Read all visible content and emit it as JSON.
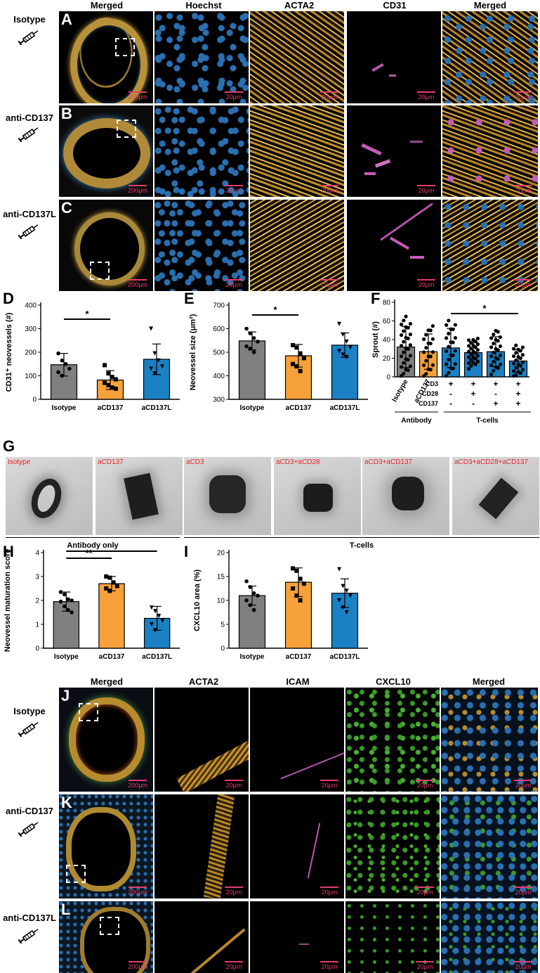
{
  "top_section": {
    "column_headers": [
      "Merged",
      "Hoechst",
      "ACTA2",
      "CD31",
      "Merged"
    ],
    "rows": [
      {
        "letter": "A",
        "label": "Isotype"
      },
      {
        "letter": "B",
        "label": "anti-CD137"
      },
      {
        "letter": "C",
        "label": "anti-CD137L"
      }
    ],
    "scale_overview": "200μm",
    "scale_zoom": "20μm"
  },
  "panel_D": {
    "letter": "D"
  },
  "panel_E": {
    "letter": "E"
  },
  "panel_F": {
    "letter": "F"
  },
  "panel_G": {
    "letter": "G",
    "images": [
      "Isotype",
      "aCD137",
      "aCD3",
      "aCD3+aCD28",
      "aCD3+aCD137",
      "aCD3+aCD28+aCD137"
    ],
    "group_labels": [
      "Antibody only",
      "T-cells"
    ]
  },
  "panel_H": {
    "letter": "H"
  },
  "panel_I": {
    "letter": "I"
  },
  "bottom_section": {
    "column_headers": [
      "Merged",
      "ACTA2",
      "ICAM",
      "CXCL10",
      "Merged"
    ],
    "rows": [
      {
        "letter": "J",
        "label": "Isotype"
      },
      {
        "letter": "K",
        "label": "anti-CD137"
      },
      {
        "letter": "L",
        "label": "anti-CD137L"
      }
    ],
    "scale_overview": "200μm",
    "scale_zoom": "20μm"
  },
  "chart_data": [
    {
      "id": "D",
      "type": "bar",
      "categories": [
        "Isotype",
        "aCD137",
        "aCD137L"
      ],
      "values": [
        147,
        82,
        170
      ],
      "errors": [
        48,
        40,
        65
      ],
      "colors": [
        "#808080",
        "#f7a13a",
        "#1b80c4"
      ],
      "ylabel": "CD31⁺ neovessels (#)",
      "ylim": [
        0,
        400
      ],
      "yticks": [
        0,
        100,
        200,
        300,
        400
      ],
      "points": [
        [
          195,
          165,
          150,
          130,
          115,
          100
        ],
        [
          145,
          110,
          95,
          85,
          70,
          60,
          50,
          45
        ],
        [
          300,
          195,
          165,
          140,
          130,
          110
        ]
      ],
      "significance": [
        {
          "from": 0,
          "to": 1,
          "label": "*"
        }
      ]
    },
    {
      "id": "E",
      "type": "bar",
      "categories": [
        "Isotype",
        "aCD137",
        "aCD137L"
      ],
      "values": [
        548,
        485,
        530
      ],
      "errors": [
        38,
        48,
        52
      ],
      "colors": [
        "#808080",
        "#f7a13a",
        "#1b80c4"
      ],
      "ylabel": "Neovessel size (μm²)",
      "ylim": [
        300,
        700
      ],
      "yticks": [
        300,
        400,
        500,
        600,
        700
      ],
      "points": [
        [
          600,
          580,
          560,
          545,
          525,
          515,
          500
        ],
        [
          530,
          520,
          495,
          475,
          450,
          440,
          420
        ],
        [
          620,
          575,
          545,
          520,
          505,
          490,
          480
        ]
      ],
      "significance": [
        {
          "from": 0,
          "to": 1,
          "label": "*"
        }
      ]
    },
    {
      "id": "F",
      "type": "bar",
      "categories": [
        "Isotype",
        "aCD137",
        "",
        "",
        "",
        ""
      ],
      "values": [
        32,
        27,
        31,
        26,
        27,
        17
      ],
      "errors": [
        22,
        19,
        21,
        11,
        16,
        12
      ],
      "colors": [
        "#808080",
        "#f7a13a",
        "#1b80c4",
        "#1b80c4",
        "#1b80c4",
        "#1b80c4"
      ],
      "ylabel": "Sprout (#)",
      "ylim": [
        0,
        80
      ],
      "yticks": [
        0,
        20,
        40,
        60,
        80
      ],
      "condition_rows": [
        {
          "label": "CD3",
          "signs": [
            "+",
            "+",
            "+",
            "+"
          ]
        },
        {
          "label": "CD28",
          "signs": [
            "-",
            "+",
            "-",
            "+"
          ]
        },
        {
          "label": "CD137",
          "signs": [
            "-",
            "-",
            "+",
            "+"
          ]
        }
      ],
      "group_labels": [
        "Antibody",
        "T-cells"
      ],
      "significance": [
        {
          "from": 2,
          "to": 5,
          "label": "*"
        }
      ]
    },
    {
      "id": "H",
      "type": "bar",
      "categories": [
        "Isotype",
        "aCD137",
        "aCD137L"
      ],
      "values": [
        1.95,
        2.7,
        1.25
      ],
      "errors": [
        0.4,
        0.3,
        0.5
      ],
      "colors": [
        "#808080",
        "#f7a13a",
        "#1b80c4"
      ],
      "ylabel": "Neovessel maturation score",
      "ylim": [
        0,
        4
      ],
      "yticks": [
        0,
        1,
        2,
        3,
        4
      ],
      "points": [
        [
          2.35,
          2.25,
          2.05,
          2.0,
          1.95,
          1.75,
          1.6,
          1.5
        ],
        [
          3.0,
          2.95,
          2.75,
          2.6,
          2.5,
          2.4
        ],
        [
          1.7,
          1.55,
          1.35,
          1.15,
          1.0,
          0.75
        ]
      ],
      "significance": [
        {
          "from": 0,
          "to": 1,
          "label": "**"
        },
        {
          "from": 0,
          "to": 2,
          "label": "**"
        }
      ]
    },
    {
      "id": "I",
      "type": "bar",
      "categories": [
        "Isotype",
        "aCD137",
        "aCD137L"
      ],
      "values": [
        11.0,
        13.8,
        11.5
      ],
      "errors": [
        2.0,
        3.0,
        3.0
      ],
      "colors": [
        "#808080",
        "#f7a13a",
        "#1b80c4"
      ],
      "ylabel": "CXCL10 area (%)",
      "ylim": [
        0,
        20
      ],
      "yticks": [
        0,
        5,
        10,
        15,
        20
      ],
      "points": [
        [
          14.0,
          12.8,
          11.5,
          11.0,
          10.0,
          9.0,
          8.0
        ],
        [
          16.7,
          16.2,
          14.5,
          13.5,
          12.5,
          11.0,
          10.0
        ],
        [
          16.5,
          13.0,
          12.0,
          11.0,
          10.0,
          8.5,
          7.5
        ]
      ],
      "significance": []
    }
  ]
}
